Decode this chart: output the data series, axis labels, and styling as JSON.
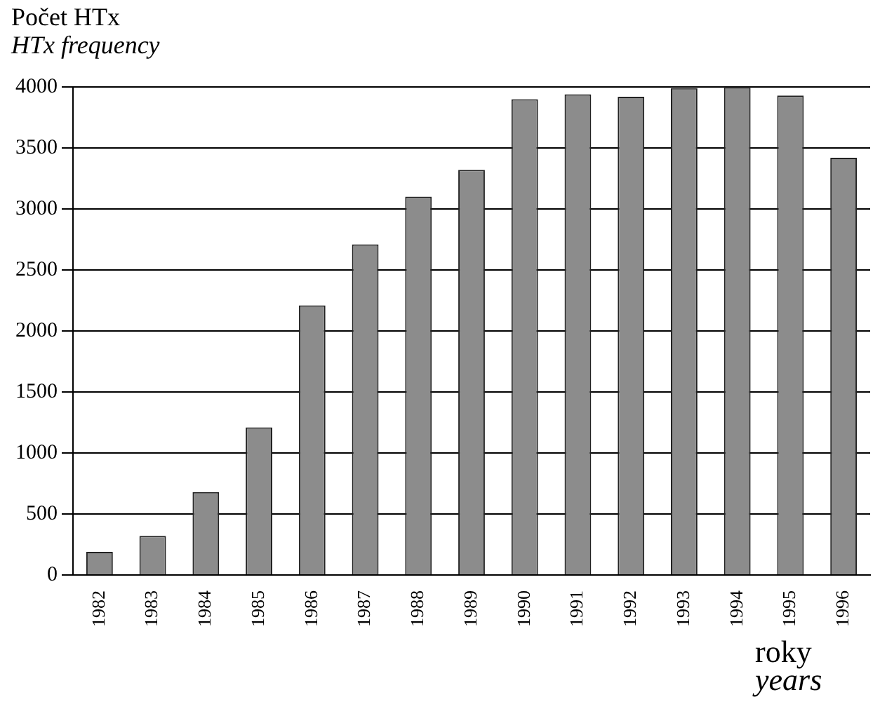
{
  "chart_data": {
    "type": "bar",
    "title": "Počet HTx",
    "subtitle": "HTx frequency",
    "xlabel": "roky",
    "annotations": [
      "years"
    ],
    "categories": [
      "1982",
      "1983",
      "1984",
      "1985",
      "1986",
      "1987",
      "1988",
      "1989",
      "1990",
      "1991",
      "1992",
      "1993",
      "1994",
      "1995",
      "1996"
    ],
    "values": [
      190,
      320,
      680,
      1210,
      2210,
      2710,
      3100,
      3320,
      3900,
      3940,
      3920,
      3990,
      4000,
      3930,
      3420
    ],
    "color": "#8c8c8c",
    "ylim": [
      0,
      4000
    ],
    "yticks": [
      0,
      500,
      1000,
      1500,
      2000,
      2500,
      3000,
      3500,
      4000
    ],
    "grid": "y"
  }
}
